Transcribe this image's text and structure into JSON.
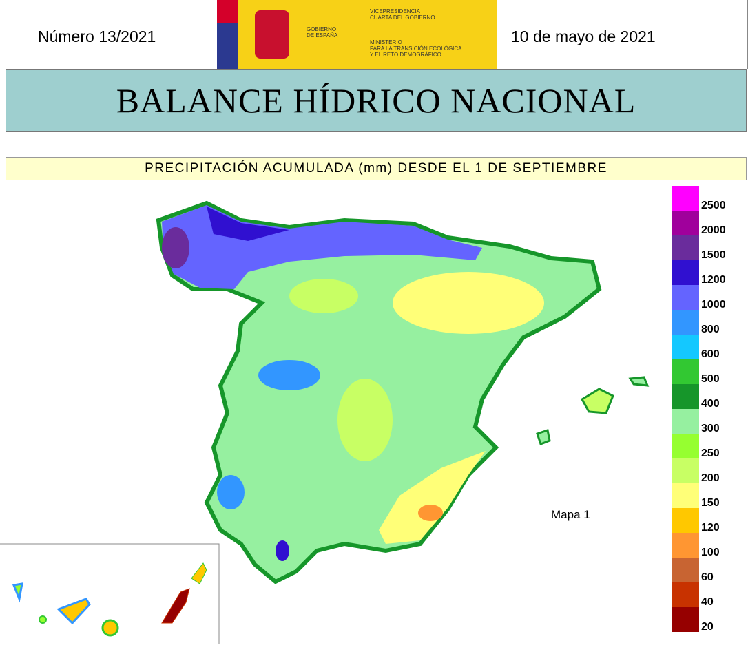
{
  "header": {
    "number": "Número 13/2021",
    "date": "10 de mayo de 2021",
    "logo": {
      "gobierno": [
        "GOBIERNO",
        "DE ESPAÑA"
      ],
      "vicepresidencia": [
        "VICEPRESIDENCIA",
        "CUARTA DEL GOBIERNO"
      ],
      "ministerio": [
        "MINISTERIO",
        "PARA LA TRANSICIÓN ECOLÓGICA",
        "Y EL RETO DEMOGRÁFICO"
      ]
    }
  },
  "title": "BALANCE HÍDRICO NACIONAL",
  "subtitle": "PRECIPITACIÓN ACUMULADA (mm) DESDE EL 1 DE SEPTIEMBRE",
  "map_label": "Mapa 1",
  "legend": [
    {
      "label": 2500,
      "color": "#ff00ff"
    },
    {
      "label": 2000,
      "color": "#a0009c"
    },
    {
      "label": 1500,
      "color": "#6a2c9c"
    },
    {
      "label": 1200,
      "color": "#3010d0"
    },
    {
      "label": 1000,
      "color": "#6464ff"
    },
    {
      "label": 800,
      "color": "#3296ff"
    },
    {
      "label": 600,
      "color": "#14c8ff"
    },
    {
      "label": 500,
      "color": "#32c832"
    },
    {
      "label": 400,
      "color": "#16962a"
    },
    {
      "label": 300,
      "color": "#96f0a0"
    },
    {
      "label": 250,
      "color": "#96ff30"
    },
    {
      "label": 200,
      "color": "#c8ff64"
    },
    {
      "label": 150,
      "color": "#ffff78"
    },
    {
      "label": 120,
      "color": "#ffc800"
    },
    {
      "label": 100,
      "color": "#ff9632"
    },
    {
      "label": 60,
      "color": "#c86432"
    },
    {
      "label": 40,
      "color": "#c83200"
    },
    {
      "label": 20,
      "color": "#960000"
    }
  ]
}
